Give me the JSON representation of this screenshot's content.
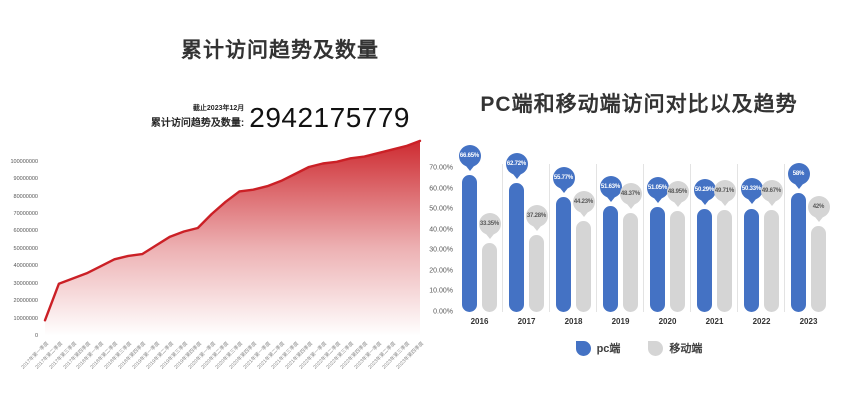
{
  "page": {
    "background": "#ffffff"
  },
  "chart_data": [
    {
      "type": "area",
      "title": "累计访问趋势及数量",
      "stat": {
        "date_label": "截止2023年12月",
        "value_label": "累计访问趋势及数量:",
        "value": "2942175779"
      },
      "color": "#cb2026",
      "x": [
        "2017年第一季度",
        "2017年第二季度",
        "2017年第三季度",
        "2017年第四季度",
        "2018年第一季度",
        "2018年第二季度",
        "2018年第三季度",
        "2018年第四季度",
        "2019年第一季度",
        "2019年第二季度",
        "2019年第三季度",
        "2019年第四季度",
        "2020年第一季度",
        "2020年第二季度",
        "2020年第三季度",
        "2020年第四季度",
        "2021年第一季度",
        "2021年第二季度",
        "2021年第三季度",
        "2021年第四季度",
        "2022年第一季度",
        "2022年第二季度",
        "2022年第三季度",
        "2022年第四季度",
        "2023年第一季度",
        "2023年第二季度",
        "2023年第三季度",
        "2023年第四季度"
      ],
      "values": [
        9000000,
        30000000,
        33000000,
        36000000,
        40000000,
        44000000,
        46000000,
        47000000,
        52000000,
        57000000,
        60000000,
        62000000,
        70000000,
        77000000,
        83000000,
        84000000,
        86000000,
        89000000,
        93000000,
        97000000,
        99000000,
        100000000,
        102000000,
        103000000,
        105000000,
        107000000,
        109000000,
        112000000
      ],
      "y_ticks": [
        "0",
        "10000000",
        "20000000",
        "30000000",
        "40000000",
        "50000000",
        "60000000",
        "70000000",
        "80000000",
        "90000000",
        "100000000"
      ],
      "ylim": [
        0,
        112500000
      ],
      "grid": false,
      "xlabel": "",
      "ylabel": ""
    },
    {
      "type": "bar",
      "title": "PC端和移动端访问对比以及趋势",
      "categories": [
        "2016",
        "2017",
        "2018",
        "2019",
        "2020",
        "2021",
        "2022",
        "2023"
      ],
      "series": [
        {
          "name": "pc端",
          "color": "#4472c4",
          "label_color": "#ffffff",
          "values": [
            66.65,
            62.72,
            55.77,
            51.63,
            51.05,
            50.29,
            50.33,
            58
          ],
          "labels": [
            "66.65%",
            "62.72%",
            "55.77%",
            "51.63%",
            "51.05%",
            "50.29%",
            "50.33%",
            "58%"
          ]
        },
        {
          "name": "移动端",
          "color": "#d5d5d5",
          "label_color": "#595959",
          "values": [
            33.35,
            37.28,
            44.23,
            48.37,
            48.95,
            49.71,
            49.67,
            42
          ],
          "labels": [
            "33.35%",
            "37.28%",
            "44.23%",
            "48.37%",
            "48.95%",
            "49.71%",
            "49.67%",
            "42%"
          ]
        }
      ],
      "y_ticks": [
        "0.00%",
        "10.00%",
        "20.00%",
        "30.00%",
        "40.00%",
        "50.00%",
        "60.00%",
        "70.00%"
      ],
      "ylim": [
        0,
        70
      ],
      "grid": false,
      "legend_position": "bottom",
      "xlabel": "",
      "ylabel": ""
    }
  ]
}
